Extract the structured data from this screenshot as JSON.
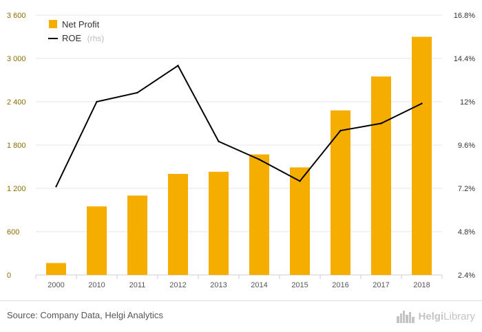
{
  "chart_data": {
    "type": "bar",
    "categories": [
      "2000",
      "2010",
      "2011",
      "2012",
      "2013",
      "2014",
      "2015",
      "2016",
      "2017",
      "2018"
    ],
    "series": [
      {
        "name": "Net Profit",
        "type": "bar",
        "axis": "left",
        "color": "#f5ae00",
        "values": [
          165,
          950,
          1100,
          1400,
          1430,
          1670,
          1490,
          2280,
          2750,
          3300
        ]
      },
      {
        "name": "ROE",
        "note": "(rhs)",
        "type": "line",
        "axis": "right",
        "color": "#000000",
        "values": [
          7.3,
          12.0,
          12.5,
          14.0,
          9.8,
          8.8,
          7.6,
          10.4,
          10.8,
          11.9
        ]
      }
    ],
    "y_left": {
      "min": 0,
      "max": 3600,
      "ticks": [
        0,
        600,
        1200,
        1800,
        2400,
        3000,
        3600
      ],
      "tick_labels": [
        "0",
        "600",
        "1 200",
        "1 800",
        "2 400",
        "3 000",
        "3 600"
      ]
    },
    "y_right": {
      "min": 2.4,
      "max": 16.8,
      "ticks": [
        2.4,
        4.8,
        7.2,
        9.6,
        12,
        14.4,
        16.8
      ],
      "tick_labels": [
        "2.4%",
        "4.8%",
        "7.2%",
        "9.6%",
        "12%",
        "14.4%",
        "16.8%"
      ]
    },
    "grid": "horizontal",
    "legend_position": "top-left"
  },
  "footer": {
    "source": "Source: Company Data, Helgi Analytics",
    "brand_first": "Helgi",
    "brand_second": "Library"
  },
  "colors": {
    "bar": "#f5ae00",
    "line": "#000000",
    "grid": "#e6e6e6",
    "left_tick": "#8a6d00"
  },
  "icons": {
    "brand_logo": "city-skyline-icon"
  }
}
